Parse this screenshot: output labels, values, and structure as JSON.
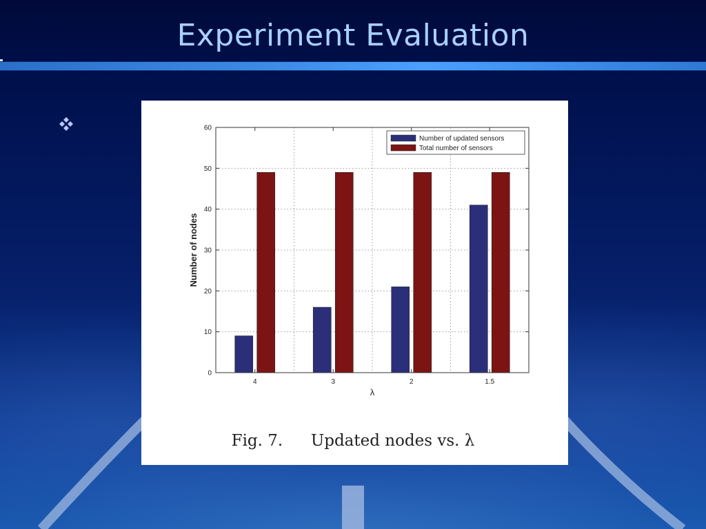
{
  "slide": {
    "title": "Experiment Evaluation",
    "bullet_icon": "four-diamond-bullet",
    "colors": {
      "title": "#a9d0ff",
      "rule": "#3d8ce8",
      "bullet": "#b8c8ff"
    }
  },
  "figure": {
    "caption_label": "Fig. 7.",
    "caption_text": "Updated nodes vs. λ"
  },
  "chart_data": {
    "type": "bar",
    "categories": [
      "4",
      "3",
      "2",
      "1.5"
    ],
    "series": [
      {
        "name": "Number of updated sensors",
        "values": [
          9,
          16,
          21,
          41
        ],
        "color": "#2b2f7a"
      },
      {
        "name": "Total number of sensors",
        "values": [
          49,
          49,
          49,
          49
        ],
        "color": "#7d1414"
      }
    ],
    "xlabel": "λ",
    "ylabel": "Number of nodes",
    "ylim": [
      0,
      60
    ],
    "yticks": [
      "0",
      "10",
      "20",
      "30",
      "40",
      "50",
      "60"
    ],
    "grid": true,
    "legend_position": "top-right"
  }
}
